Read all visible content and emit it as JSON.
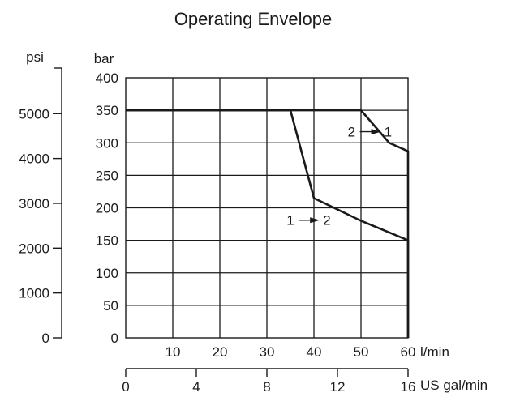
{
  "chart_data": {
    "type": "line",
    "title": "Operating Envelope",
    "x_axis": {
      "unit": "l/min",
      "range": [
        0,
        60
      ],
      "ticks": [
        10,
        20,
        30,
        40,
        50,
        60
      ],
      "tick_labels": [
        "10",
        "20",
        "30",
        "40",
        "50",
        "60"
      ]
    },
    "x_axis_secondary": {
      "unit": "US gal/min",
      "range": [
        0,
        16
      ],
      "ticks": [
        0,
        4,
        8,
        12,
        16
      ],
      "tick_labels": [
        "0",
        "4",
        "8",
        "12",
        "16"
      ]
    },
    "y_axis": {
      "unit": "bar",
      "range": [
        0,
        400
      ],
      "ticks": [
        0,
        50,
        100,
        150,
        200,
        250,
        300,
        350,
        400
      ],
      "tick_labels": [
        "0",
        "50",
        "100",
        "150",
        "200",
        "250",
        "300",
        "350",
        "400"
      ]
    },
    "y_axis_secondary": {
      "unit": "psi",
      "range": [
        0,
        5800
      ],
      "ticks": [
        0,
        1000,
        2000,
        3000,
        4000,
        5000
      ],
      "tick_labels": [
        "0",
        "1000",
        "2000",
        "3000",
        "4000",
        "5000"
      ]
    },
    "grid": true,
    "series": [
      {
        "name": "1 → 2",
        "points": [
          [
            0,
            350
          ],
          [
            35,
            350
          ],
          [
            40,
            215
          ],
          [
            50,
            180
          ],
          [
            60,
            150
          ],
          [
            60,
            0
          ]
        ]
      },
      {
        "name": "2 → 1",
        "points": [
          [
            0,
            350
          ],
          [
            50,
            350
          ],
          [
            56,
            300
          ],
          [
            60,
            287
          ],
          [
            60,
            0
          ]
        ]
      }
    ],
    "annotations": [
      {
        "from": "2",
        "to": "1",
        "x": 52,
        "y": 317
      },
      {
        "from": "1",
        "to": "2",
        "x": 39,
        "y": 181
      }
    ]
  }
}
